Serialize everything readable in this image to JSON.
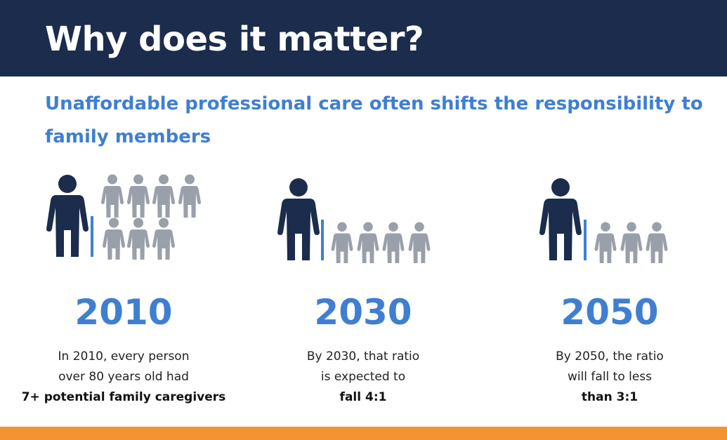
{
  "header": {
    "title": "Why does it matter?"
  },
  "subtitle": "Unaffordable professional care often shifts the responsibility to family members",
  "colors": {
    "navy": "#1b2c4c",
    "accent_blue": "#3f7fd2",
    "gray_figure": "#9aa0aa",
    "orange_bar": "#f39331"
  },
  "panels": [
    {
      "year": "2010",
      "line1": "In 2010, every person",
      "line2": "over 80 years old had",
      "bold": "7+ potential family caregivers",
      "caregiver_count": 7,
      "icon": "elderly-person-icon"
    },
    {
      "year": "2030",
      "line1": "By 2030, that ratio",
      "line2": "is expected to",
      "bold": "fall 4:1",
      "caregiver_count": 4,
      "icon": "elderly-person-icon"
    },
    {
      "year": "2050",
      "line1": "By 2050, the ratio",
      "line2": "will fall to less",
      "bold": "than 3:1",
      "caregiver_count": 3,
      "icon": "elderly-person-icon"
    }
  ]
}
